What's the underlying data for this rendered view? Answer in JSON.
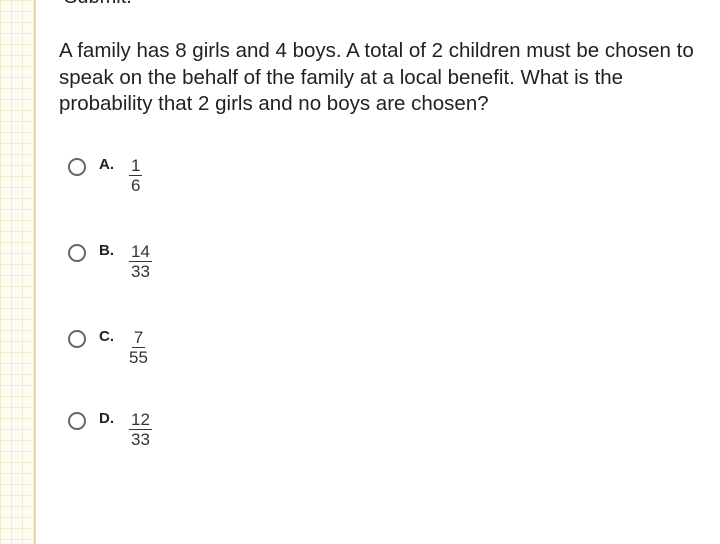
{
  "header": {
    "partial_text": "Submit."
  },
  "question": "A family has 8 girls and 4 boys. A total of 2 children must be chosen to speak on the behalf of the family at a local benefit. What is the probability that 2 girls and no boys are chosen?",
  "options": [
    {
      "letter": "A.",
      "numerator": "1",
      "denominator": "6"
    },
    {
      "letter": "B.",
      "numerator": "14",
      "denominator": "33"
    },
    {
      "letter": "C.",
      "numerator": "7",
      "denominator": "55"
    },
    {
      "letter": "D.",
      "numerator": "12",
      "denominator": "33"
    }
  ]
}
